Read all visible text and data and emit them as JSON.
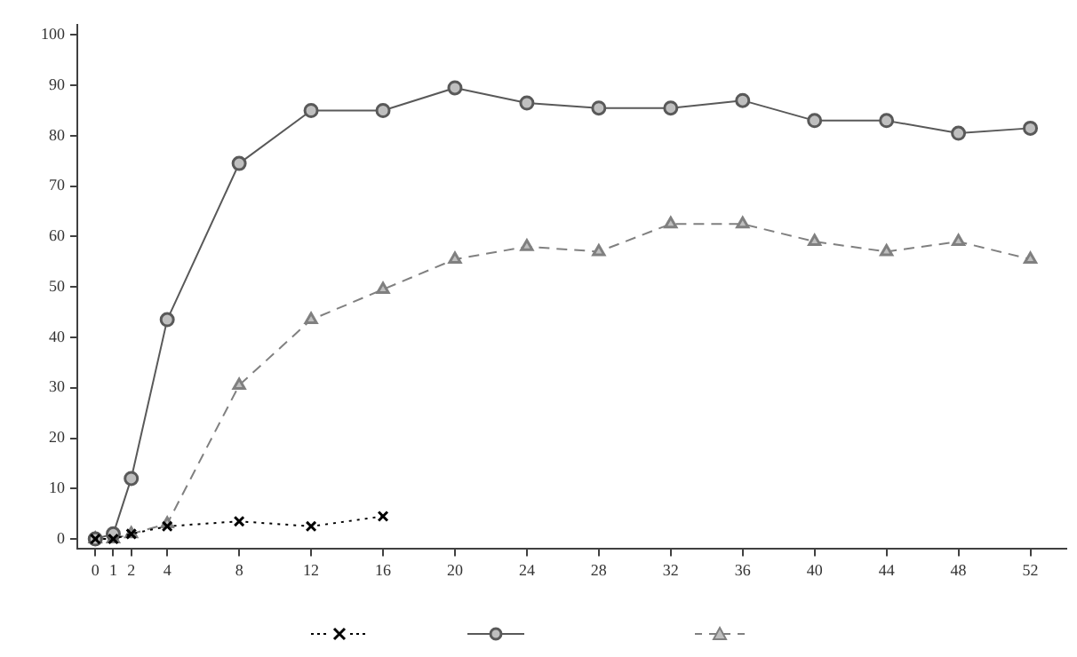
{
  "chart_data": {
    "type": "line",
    "x": [
      0,
      1,
      2,
      4,
      8,
      12,
      16,
      20,
      24,
      28,
      32,
      36,
      40,
      44,
      48,
      52
    ],
    "series": [
      {
        "color": "#000000",
        "marker": "cross",
        "line_style": "dotted",
        "x": [
          0,
          1,
          2,
          4,
          8,
          12,
          16
        ],
        "values": [
          0,
          0,
          1,
          2.5,
          3.5,
          2.5,
          4.5
        ]
      },
      {
        "color": "#595959",
        "marker": "circle",
        "line_style": "solid",
        "values": [
          0,
          1,
          12,
          43.5,
          74.5,
          85,
          85,
          89.5,
          86.5,
          85.5,
          85.5,
          87,
          83,
          83,
          80.5,
          81.5
        ]
      },
      {
        "color": "#808080",
        "marker": "triangle",
        "line_style": "dashed",
        "values": [
          0,
          0,
          1,
          3,
          30.5,
          43.5,
          49.5,
          55.5,
          58,
          57,
          62.5,
          62.5,
          59,
          57,
          59,
          55.5
        ]
      }
    ],
    "xlim": [
      -1,
      54
    ],
    "xticks": [
      0,
      1,
      2,
      4,
      8,
      12,
      16,
      20,
      24,
      28,
      32,
      36,
      40,
      44,
      48,
      52
    ],
    "ylim": [
      -2,
      102
    ],
    "yticks": [
      0,
      10,
      20,
      30,
      40,
      50,
      60,
      70,
      80,
      90,
      100
    ],
    "grid": false
  }
}
